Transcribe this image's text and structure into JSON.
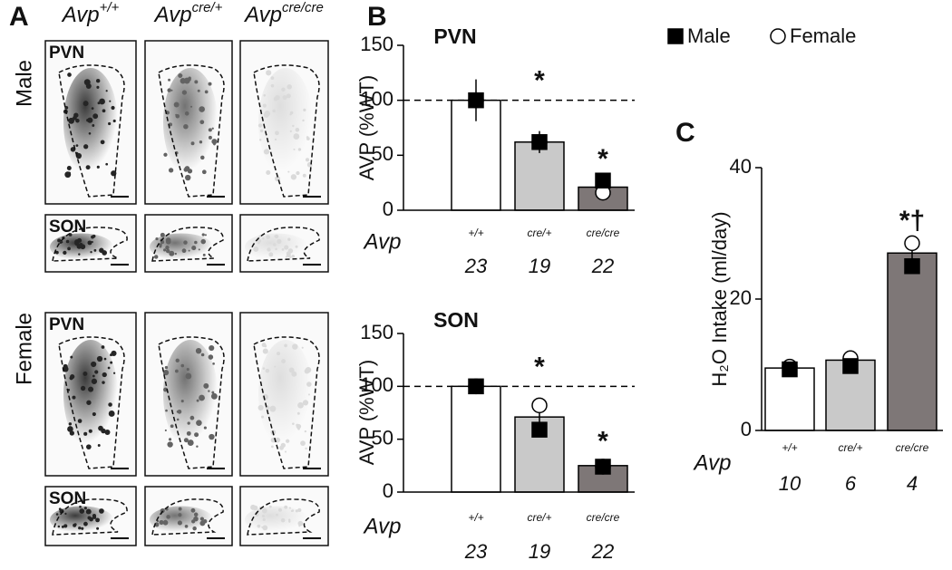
{
  "panels": [
    "A",
    "B",
    "C"
  ],
  "genotypes": [
    {
      "base": "Avp",
      "sup": "+/+"
    },
    {
      "base": "Avp",
      "sup": "cre/+"
    },
    {
      "base": "Avp",
      "sup": "cre/cre"
    }
  ],
  "rows": [
    "Male",
    "Female"
  ],
  "regions": [
    "PVN",
    "SON"
  ],
  "chart_data": [
    {
      "type": "bar",
      "title": "PVN",
      "y_label": "AVP (%WT)",
      "x_label": "Avp",
      "categories": [
        "+/+",
        "cre/+",
        "cre/cre"
      ],
      "n_labels": [
        23,
        19,
        22
      ],
      "values": [
        100,
        62,
        21
      ],
      "errors": [
        19,
        10,
        6
      ],
      "colors": [
        "#ffffff",
        "#c9c9c9",
        "#7e7777"
      ],
      "series": [
        {
          "name": "Male",
          "marker": "square",
          "color": "#000000",
          "values": [
            100,
            62,
            27
          ]
        },
        {
          "name": "Female",
          "marker": "circle",
          "color": "#ffffff",
          "values": [
            100,
            62,
            16
          ]
        }
      ],
      "reference_line": 100,
      "annotations": [
        null,
        "*",
        "*"
      ],
      "ylim": [
        0,
        150
      ],
      "yticks": [
        0,
        50,
        100,
        150
      ]
    },
    {
      "type": "bar",
      "title": "SON",
      "y_label": "AVP (%WT)",
      "x_label": "Avp",
      "categories": [
        "+/+",
        "cre/+",
        "cre/cre"
      ],
      "n_labels": [
        23,
        19,
        22
      ],
      "values": [
        100,
        71,
        25
      ],
      "errors": [
        2,
        10,
        3
      ],
      "colors": [
        "#ffffff",
        "#c9c9c9",
        "#7e7777"
      ],
      "series": [
        {
          "marker": "square",
          "color": "#000000",
          "values": [
            100,
            59,
            24
          ]
        },
        {
          "marker": "circle",
          "color": "#ffffff",
          "values": [
            100,
            82,
            24
          ]
        }
      ],
      "reference_line": 100,
      "annotations": [
        null,
        "*",
        "*"
      ],
      "ylim": [
        0,
        150
      ],
      "yticks": [
        0,
        50,
        100,
        150
      ]
    },
    {
      "type": "bar",
      "y_label": "H₂O Intake (ml/day)",
      "x_label": "Avp",
      "categories": [
        "+/+",
        "cre/+",
        "cre/cre"
      ],
      "n_labels": [
        10,
        6,
        4
      ],
      "values": [
        9.5,
        10.7,
        27
      ],
      "errors": [
        0.5,
        0.5,
        1.7
      ],
      "colors": [
        "#ffffff",
        "#c9c9c9",
        "#7e7777"
      ],
      "series": [
        {
          "marker": "square",
          "color": "#000000",
          "values": [
            9.3,
            9.8,
            25
          ]
        },
        {
          "marker": "circle",
          "color": "#ffffff",
          "values": [
            9.7,
            11,
            28.5
          ]
        }
      ],
      "annotations": [
        null,
        null,
        "*†"
      ],
      "ylim": [
        0,
        40
      ],
      "yticks": [
        0,
        20,
        40
      ]
    }
  ]
}
